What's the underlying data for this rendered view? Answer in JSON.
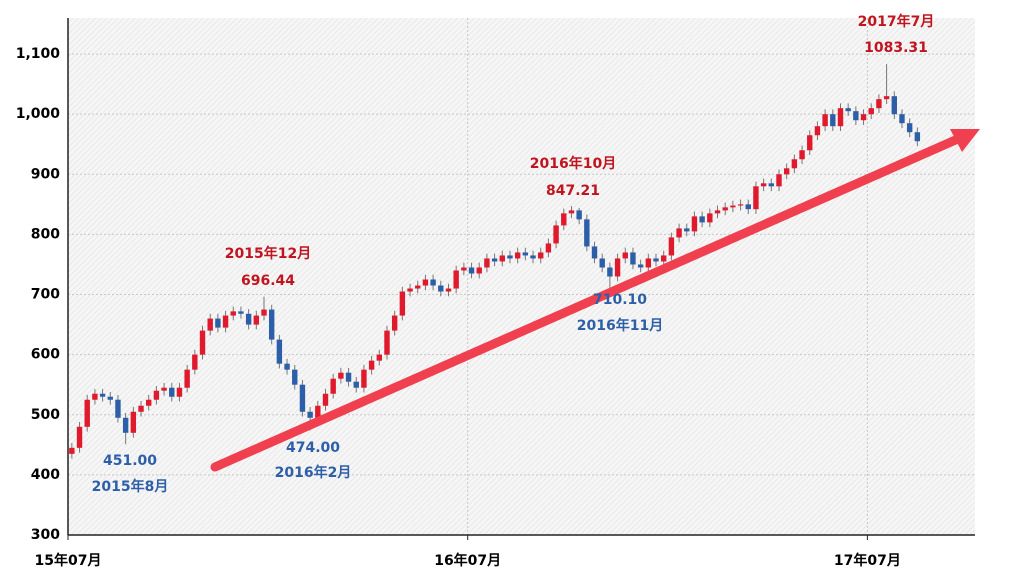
{
  "chart_data": {
    "type": "candlestick",
    "open": [
      435,
      445,
      480,
      525,
      535,
      530,
      525,
      495,
      470,
      505,
      515,
      525,
      540,
      545,
      530,
      545,
      575,
      600,
      640,
      660,
      645,
      665,
      672,
      668,
      650,
      665,
      675,
      625,
      585,
      575,
      550,
      505,
      495,
      515,
      535,
      560,
      570,
      555,
      545,
      575,
      590,
      600,
      640,
      665,
      705,
      710,
      715,
      725,
      715,
      705,
      710,
      740,
      745,
      735,
      745,
      760,
      755,
      765,
      760,
      770,
      765,
      760,
      770,
      785,
      815,
      835,
      840,
      825,
      780,
      760,
      745,
      730,
      760,
      770,
      750,
      745,
      760,
      755,
      765,
      795,
      810,
      805,
      830,
      820,
      835,
      840,
      845,
      848,
      850,
      842,
      880,
      885,
      880,
      900,
      910,
      925,
      940,
      965,
      980,
      1000,
      980,
      1010,
      1005,
      990,
      1000,
      1010,
      1025,
      1030,
      1000,
      985,
      970
    ],
    "high": [
      453,
      488,
      533,
      543,
      543,
      538,
      533,
      503,
      513,
      523,
      533,
      548,
      553,
      553,
      553,
      583,
      608,
      648,
      668,
      668,
      673,
      680,
      680,
      676,
      673,
      696.44,
      683,
      633,
      593,
      583,
      558,
      513,
      523,
      543,
      568,
      578,
      578,
      563,
      583,
      598,
      608,
      648,
      673,
      713,
      718,
      723,
      733,
      733,
      723,
      718,
      748,
      753,
      753,
      753,
      768,
      768,
      773,
      773,
      778,
      778,
      773,
      778,
      793,
      823,
      843,
      847.21,
      844,
      833,
      788,
      768,
      753,
      768,
      778,
      778,
      758,
      768,
      768,
      773,
      803,
      818,
      818,
      838,
      838,
      843,
      848,
      853,
      856,
      858,
      858,
      888,
      893,
      893,
      908,
      918,
      933,
      948,
      973,
      988,
      1008,
      1008,
      1018,
      1018,
      1013,
      1008,
      1018,
      1033,
      1083.31,
      1038,
      1008,
      993,
      978
    ],
    "low": [
      427,
      437,
      472,
      517,
      522,
      517,
      487,
      451,
      462,
      497,
      507,
      517,
      532,
      522,
      522,
      537,
      567,
      592,
      632,
      637,
      637,
      657,
      660,
      642,
      642,
      657,
      617,
      577,
      567,
      542,
      497,
      474,
      487,
      507,
      527,
      552,
      547,
      537,
      537,
      567,
      582,
      592,
      632,
      657,
      697,
      702,
      707,
      707,
      697,
      697,
      702,
      732,
      727,
      727,
      737,
      747,
      747,
      752,
      752,
      757,
      752,
      752,
      762,
      777,
      807,
      827,
      817,
      772,
      752,
      737,
      710.1,
      722,
      752,
      742,
      737,
      737,
      747,
      747,
      757,
      787,
      797,
      797,
      812,
      812,
      827,
      832,
      837,
      840,
      834,
      834,
      872,
      872,
      872,
      892,
      902,
      917,
      932,
      957,
      972,
      972,
      972,
      997,
      982,
      982,
      992,
      1002,
      1017,
      992,
      977,
      962,
      947
    ],
    "close": [
      445,
      480,
      525,
      535,
      530,
      525,
      495,
      470,
      505,
      515,
      525,
      540,
      545,
      530,
      545,
      575,
      600,
      640,
      660,
      645,
      665,
      672,
      668,
      650,
      665,
      675,
      625,
      585,
      575,
      550,
      505,
      495,
      515,
      535,
      560,
      570,
      555,
      545,
      575,
      590,
      600,
      640,
      665,
      705,
      710,
      715,
      725,
      715,
      705,
      710,
      740,
      745,
      735,
      745,
      760,
      755,
      765,
      760,
      770,
      765,
      760,
      770,
      785,
      815,
      835,
      840,
      825,
      780,
      760,
      745,
      730,
      760,
      770,
      750,
      745,
      760,
      755,
      765,
      795,
      810,
      805,
      830,
      820,
      835,
      840,
      845,
      848,
      850,
      842,
      880,
      885,
      880,
      900,
      910,
      925,
      940,
      965,
      980,
      1000,
      980,
      1010,
      1005,
      990,
      1000,
      1010,
      1025,
      1030,
      1000,
      985,
      970,
      955
    ],
    "up_color": "#e0192c",
    "down_color": "#2d5fa8",
    "xlim": [
      0,
      118
    ],
    "xticks": [
      {
        "value": 0,
        "label": "15年07月"
      },
      {
        "value": 52,
        "label": "16年07月"
      },
      {
        "value": 104,
        "label": "17年07月"
      }
    ],
    "ylim": [
      300,
      1160
    ],
    "yticks": [
      300,
      400,
      500,
      600,
      700,
      800,
      900,
      {
        "value": 1000,
        "label": "1,000"
      },
      {
        "value": 1100,
        "label": "1,100"
      }
    ],
    "grid": true,
    "annotations": [
      {
        "date": "2015年8月",
        "value": 451,
        "value_label": "451.00",
        "color": "#2d5fa8"
      },
      {
        "date": "2015年12月",
        "value": 696.44,
        "value_label": "696.44",
        "color": "#c0141e"
      },
      {
        "date": "2016年2月",
        "value": 474,
        "value_label": "474.00",
        "color": "#2d5fa8"
      },
      {
        "date": "2016年10月",
        "value": 847.21,
        "value_label": "847.21",
        "color": "#c0141e"
      },
      {
        "date": "2016年11月",
        "value": 710.1,
        "value_label": "710.10",
        "color": "#2d5fa8"
      },
      {
        "date": "2017年7月",
        "value": 1083.31,
        "value_label": "1083.31",
        "color": "#c0141e"
      }
    ]
  }
}
